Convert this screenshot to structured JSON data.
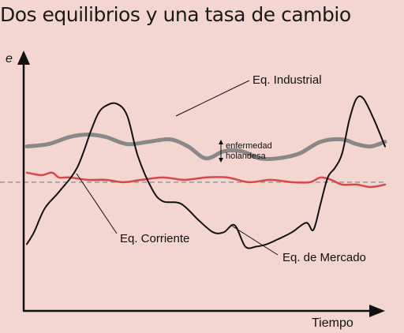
{
  "title": "Dos equilibrios y una tasa de cambio",
  "colors": {
    "background": "#f3d6cf",
    "industrial": "#888888",
    "corriente": "#d9474b",
    "mercado": "#111111",
    "axis": "#111111",
    "reference": "#8a8a8a"
  },
  "chart_data": {
    "type": "line",
    "title": "Dos equilibrios y una tasa de cambio",
    "xlabel": "Tiempo",
    "ylabel": "e",
    "grid": false,
    "legend": "direct labels on lines",
    "ticks": "none",
    "units": "conceptual (no numeric scale); x = tiempo 0–100, y = e 0–100",
    "xlim": [
      0,
      100
    ],
    "ylim": [
      0,
      100
    ],
    "reference_line": {
      "style": "dashed",
      "y": 54
    },
    "series": [
      {
        "name": "Eq. Industrial",
        "x": [
          0,
          6,
          12,
          17,
          22,
          28,
          34,
          40,
          45,
          50,
          55,
          60,
          65,
          70,
          76,
          82,
          88,
          92,
          96,
          100
        ],
        "y": [
          69,
          70,
          73,
          74,
          73,
          70,
          71,
          72,
          69,
          64,
          67,
          67,
          64,
          64,
          66,
          71,
          72,
          70,
          69,
          71
        ]
      },
      {
        "name": "Eq. Corriente",
        "x": [
          0,
          4,
          7,
          9,
          12,
          17,
          22,
          27,
          32,
          38,
          44,
          50,
          56,
          62,
          68,
          74,
          79,
          82,
          85,
          88,
          92,
          96,
          100
        ],
        "y": [
          58,
          57,
          58,
          56,
          56,
          55,
          55,
          54,
          55,
          56,
          55,
          56,
          56,
          54,
          55,
          54,
          54,
          56,
          55,
          53,
          53,
          52,
          53
        ]
      },
      {
        "name": "Eq. de Mercado",
        "x": [
          0,
          2,
          5,
          9,
          14,
          18,
          20,
          22,
          25,
          28,
          31,
          35,
          38,
          43,
          48,
          52,
          55,
          58,
          61,
          64,
          67,
          70,
          74,
          78,
          80,
          82,
          84,
          86,
          88,
          90,
          92,
          94,
          97,
          100
        ],
        "y": [
          28,
          33,
          43,
          50,
          60,
          76,
          83,
          86,
          87,
          82,
          65,
          51,
          46,
          45,
          38,
          33,
          33,
          36,
          27,
          27,
          28,
          30,
          33,
          37,
          34,
          45,
          56,
          60,
          66,
          80,
          89,
          89,
          80,
          69
        ]
      }
    ],
    "annotations": [
      {
        "text": "enfermedad holandesa",
        "type": "double-arrow gap between Eq. Industrial and Eq. Corriente"
      }
    ]
  },
  "labels": {
    "industrial": "Eq. Industrial",
    "corriente": "Eq. Corriente",
    "mercado": "Eq. de Mercado",
    "enfermedad_1": "enfermedad",
    "enfermedad_2": "holandesa",
    "xaxis": "Tiempo",
    "yaxis": "e"
  }
}
